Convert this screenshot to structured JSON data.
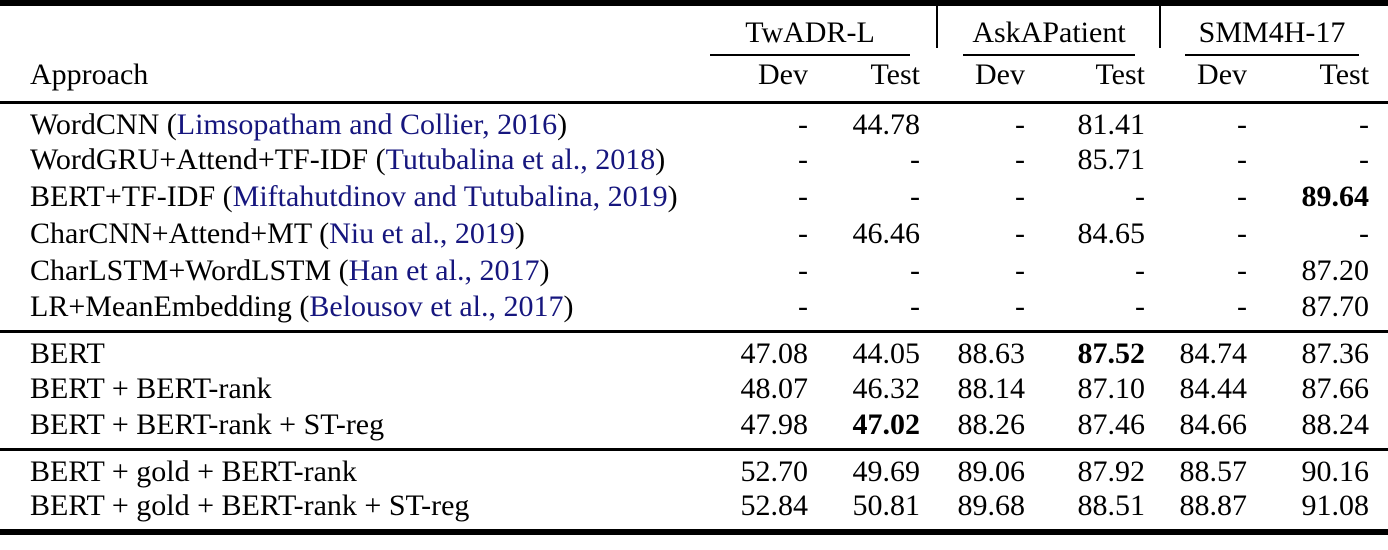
{
  "colors": {
    "text": "#000000",
    "citation": "#16167e",
    "rule": "#000000",
    "background": "#ffffff"
  },
  "table": {
    "approach_header": "Approach",
    "citation_wrap": {
      "open": "(",
      "close": ")"
    },
    "groups": [
      {
        "label": "TwADR-L",
        "sub": [
          "Dev",
          "Test"
        ]
      },
      {
        "label": "AskAPatient",
        "sub": [
          "Dev",
          "Test"
        ]
      },
      {
        "label": "SMM4H-17",
        "sub": [
          "Dev",
          "Test"
        ]
      }
    ],
    "sections": [
      {
        "rows": [
          {
            "name": "WordCNN",
            "citation": "Limsopatham and Collier, 2016",
            "values": [
              "-",
              "44.78",
              "-",
              "81.41",
              "-",
              "-"
            ],
            "bold_cols": []
          },
          {
            "name": "WordGRU+Attend+TF-IDF",
            "citation": "Tutubalina et al., 2018",
            "values": [
              "-",
              "-",
              "-",
              "85.71",
              "-",
              "-"
            ],
            "bold_cols": []
          },
          {
            "name": "BERT+TF-IDF",
            "citation": "Miftahutdinov and Tutubalina, 2019",
            "values": [
              "-",
              "-",
              "-",
              "-",
              "-",
              "89.64"
            ],
            "bold_cols": [
              5
            ]
          },
          {
            "name": "CharCNN+Attend+MT",
            "citation": "Niu et al., 2019",
            "values": [
              "-",
              "46.46",
              "-",
              "84.65",
              "-",
              "-"
            ],
            "bold_cols": []
          },
          {
            "name": "CharLSTM+WordLSTM",
            "citation": "Han et al., 2017",
            "values": [
              "-",
              "-",
              "-",
              "-",
              "-",
              "87.20"
            ],
            "bold_cols": []
          },
          {
            "name": "LR+MeanEmbedding",
            "citation": "Belousov et al., 2017",
            "values": [
              "-",
              "-",
              "-",
              "-",
              "-",
              "87.70"
            ],
            "bold_cols": []
          }
        ]
      },
      {
        "rows": [
          {
            "name": "BERT",
            "citation": null,
            "values": [
              "47.08",
              "44.05",
              "88.63",
              "87.52",
              "84.74",
              "87.36"
            ],
            "bold_cols": [
              3
            ]
          },
          {
            "name": "BERT + BERT-rank",
            "citation": null,
            "values": [
              "48.07",
              "46.32",
              "88.14",
              "87.10",
              "84.44",
              "87.66"
            ],
            "bold_cols": []
          },
          {
            "name": "BERT + BERT-rank + ST-reg",
            "citation": null,
            "values": [
              "47.98",
              "47.02",
              "88.26",
              "87.46",
              "84.66",
              "88.24"
            ],
            "bold_cols": [
              1
            ]
          }
        ]
      },
      {
        "rows": [
          {
            "name": "BERT + gold + BERT-rank",
            "citation": null,
            "values": [
              "52.70",
              "49.69",
              "89.06",
              "87.92",
              "88.57",
              "90.16"
            ],
            "bold_cols": []
          },
          {
            "name": "BERT + gold + BERT-rank + ST-reg",
            "citation": null,
            "values": [
              "52.84",
              "50.81",
              "89.68",
              "88.51",
              "88.87",
              "91.08"
            ],
            "bold_cols": []
          }
        ]
      }
    ]
  }
}
